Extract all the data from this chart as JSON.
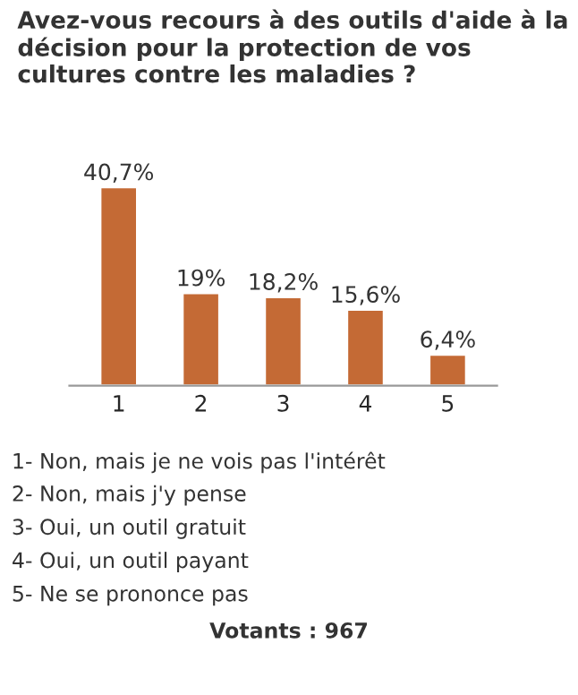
{
  "chart_data": {
    "type": "bar",
    "title": "Avez-vous recours à des outils d'aide à la décision pour la protection de vos cultures contre les maladies ?",
    "categories": [
      "1",
      "2",
      "3",
      "4",
      "5"
    ],
    "values": [
      40.7,
      19,
      18.2,
      15.6,
      6.4
    ],
    "value_labels": [
      "40,7%",
      "19%",
      "18,2%",
      "15,6%",
      "6,4%"
    ],
    "color": "#c46a35",
    "annotations": [
      "1- Non, mais je ne vois pas l'intérêt",
      "2- Non, mais j'y pense",
      "3- Oui, un outil gratuit",
      "4- Oui, un outil payant",
      "5- Ne se prononce pas",
      "Votants : 967"
    ]
  }
}
